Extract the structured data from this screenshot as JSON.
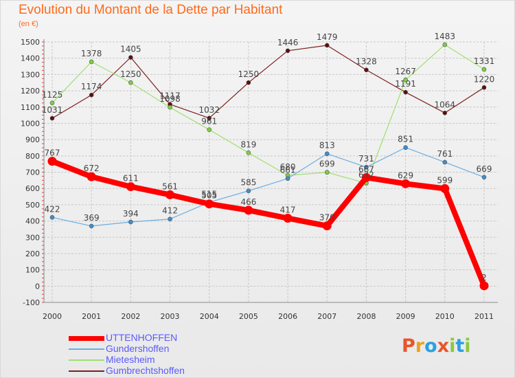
{
  "header": {
    "title": "Evolution du Montant de la Dette par Habitant",
    "subtitle": "(en €)"
  },
  "colors": {
    "title": "#ff6a1a",
    "legend_text": "#5a5aff",
    "grid": "#c8c8c8"
  },
  "logo": {
    "text": "Proxiti",
    "letters": [
      {
        "ch": "P",
        "color": "#e8552c"
      },
      {
        "ch": "r",
        "color": "#f0a020"
      },
      {
        "ch": "o",
        "color": "#2aa0e0"
      },
      {
        "ch": "x",
        "color": "#e8552c"
      },
      {
        "ch": "i",
        "color": "#8cc840"
      },
      {
        "ch": "t",
        "color": "#2aa0e0"
      },
      {
        "ch": "i",
        "color": "#8cc840"
      }
    ]
  },
  "chart_data": {
    "type": "line",
    "title": "Evolution du Montant de la Dette par Habitant",
    "subtitle": "(en €)",
    "xlabel": "",
    "ylabel": "",
    "x": [
      "2000",
      "2001",
      "2002",
      "2003",
      "2004",
      "2005",
      "2006",
      "2007",
      "2008",
      "2009",
      "2010",
      "2011"
    ],
    "ylim": [
      -100,
      1500
    ],
    "yticks": [
      -100,
      0,
      100,
      200,
      300,
      400,
      500,
      600,
      700,
      800,
      900,
      1000,
      1100,
      1200,
      1300,
      1400,
      1500
    ],
    "grid": true,
    "legend_position": "bottom-left",
    "series": [
      {
        "name": "Gumbrechtshoffen",
        "color": "#7a1f1f",
        "marker": "#5a0f0f",
        "width": 1.2,
        "values": [
          1031,
          1174,
          1405,
          1117,
          1032,
          1250,
          1446,
          1479,
          1328,
          1191,
          1064,
          1220
        ]
      },
      {
        "name": "Mietesheim",
        "color": "#9ee070",
        "marker": "#7cd040",
        "width": 1.2,
        "values": [
          1125,
          1378,
          1250,
          1098,
          961,
          819,
          680,
          699,
          632,
          1267,
          1483,
          1331
        ]
      },
      {
        "name": "Gundershoffen",
        "color": "#6aaee0",
        "marker": "#3b8fd0",
        "width": 1.2,
        "values": [
          422,
          369,
          394,
          412,
          515,
          585,
          661,
          813,
          731,
          851,
          761,
          669
        ]
      },
      {
        "name": "UTTENHOFFEN",
        "color": "#ff0000",
        "marker": "#ff0000",
        "width": 8,
        "values": [
          767,
          672,
          611,
          561,
          505,
          466,
          417,
          370,
          667,
          629,
          599,
          2
        ]
      }
    ],
    "legend_order": [
      "UTTENHOFFEN",
      "Gundershoffen",
      "Mietesheim",
      "Gumbrechtshoffen"
    ]
  }
}
